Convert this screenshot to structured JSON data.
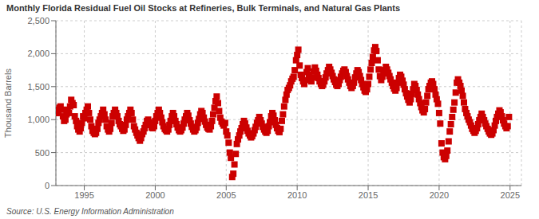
{
  "chart_data": {
    "type": "scatter",
    "title": "Monthly Florida Residual Fuel Oil Stocks at Refineries, Bulk Terminals, and Natural Gas Plants",
    "ylabel": "Thousand Barrels",
    "annotations": [
      "Source: U.S. Energy Information Administration"
    ],
    "color": "#cc0000",
    "marker": "square",
    "grid": true,
    "xlim": [
      1993.0,
      2025.8
    ],
    "xticks": [
      1995,
      2000,
      2005,
      2010,
      2015,
      2020,
      2025
    ],
    "ylim": [
      0,
      2500
    ],
    "yticks": [
      0,
      500,
      {
        "value": 1000,
        "label": "1,000"
      },
      {
        "value": 1500,
        "label": "1,500"
      },
      {
        "value": 2000,
        "label": "2,000"
      },
      {
        "value": 2500,
        "label": "2,500"
      }
    ],
    "x": [
      1993.0,
      1993.08,
      1993.17,
      1993.25,
      1993.33,
      1993.42,
      1993.5,
      1993.58,
      1993.67,
      1993.75,
      1993.83,
      1993.92,
      1994.0,
      1994.08,
      1994.17,
      1994.25,
      1994.33,
      1994.42,
      1994.5,
      1994.58,
      1994.67,
      1994.75,
      1994.83,
      1994.92,
      1995.0,
      1995.08,
      1995.17,
      1995.25,
      1995.33,
      1995.42,
      1995.5,
      1995.58,
      1995.67,
      1995.75,
      1995.83,
      1995.92,
      1996.0,
      1996.08,
      1996.17,
      1996.25,
      1996.33,
      1996.42,
      1996.5,
      1996.58,
      1996.67,
      1996.75,
      1996.83,
      1996.92,
      1997.0,
      1997.08,
      1997.17,
      1997.25,
      1997.33,
      1997.42,
      1997.5,
      1997.58,
      1997.67,
      1997.75,
      1997.83,
      1997.92,
      1998.0,
      1998.08,
      1998.17,
      1998.25,
      1998.33,
      1998.42,
      1998.5,
      1998.58,
      1998.67,
      1998.75,
      1998.83,
      1998.92,
      1999.0,
      1999.08,
      1999.17,
      1999.25,
      1999.33,
      1999.42,
      1999.5,
      1999.58,
      1999.67,
      1999.75,
      1999.83,
      1999.92,
      2000.0,
      2000.08,
      2000.17,
      2000.25,
      2000.33,
      2000.42,
      2000.5,
      2000.58,
      2000.67,
      2000.75,
      2000.83,
      2000.92,
      2001.0,
      2001.08,
      2001.17,
      2001.25,
      2001.33,
      2001.42,
      2001.5,
      2001.58,
      2001.67,
      2001.75,
      2001.83,
      2001.92,
      2002.0,
      2002.08,
      2002.17,
      2002.25,
      2002.33,
      2002.42,
      2002.5,
      2002.58,
      2002.67,
      2002.75,
      2002.83,
      2002.92,
      2003.0,
      2003.08,
      2003.17,
      2003.25,
      2003.33,
      2003.42,
      2003.5,
      2003.58,
      2003.67,
      2003.75,
      2003.83,
      2003.92,
      2004.0,
      2004.08,
      2004.17,
      2004.25,
      2004.33,
      2004.42,
      2004.5,
      2004.58,
      2004.67,
      2004.75,
      2004.83,
      2004.92,
      2005.0,
      2005.08,
      2005.17,
      2005.25,
      2005.33,
      2005.42,
      2005.5,
      2005.58,
      2005.67,
      2005.75,
      2005.83,
      2005.92,
      2006.0,
      2006.08,
      2006.17,
      2006.25,
      2006.33,
      2006.42,
      2006.5,
      2006.58,
      2006.67,
      2006.75,
      2006.83,
      2006.92,
      2007.0,
      2007.08,
      2007.17,
      2007.25,
      2007.33,
      2007.42,
      2007.5,
      2007.58,
      2007.67,
      2007.75,
      2007.83,
      2007.92,
      2008.0,
      2008.08,
      2008.17,
      2008.25,
      2008.33,
      2008.42,
      2008.5,
      2008.58,
      2008.67,
      2008.75,
      2008.83,
      2008.92,
      2009.0,
      2009.08,
      2009.17,
      2009.25,
      2009.33,
      2009.42,
      2009.5,
      2009.58,
      2009.67,
      2009.75,
      2009.83,
      2009.92,
      2010.0,
      2010.08,
      2010.17,
      2010.25,
      2010.33,
      2010.42,
      2010.5,
      2010.58,
      2010.67,
      2010.75,
      2010.83,
      2010.92,
      2011.0,
      2011.08,
      2011.17,
      2011.25,
      2011.33,
      2011.42,
      2011.5,
      2011.58,
      2011.67,
      2011.75,
      2011.83,
      2011.92,
      2012.0,
      2012.08,
      2012.17,
      2012.25,
      2012.33,
      2012.42,
      2012.5,
      2012.58,
      2012.67,
      2012.75,
      2012.83,
      2012.92,
      2013.0,
      2013.08,
      2013.17,
      2013.25,
      2013.33,
      2013.42,
      2013.5,
      2013.58,
      2013.67,
      2013.75,
      2013.83,
      2013.92,
      2014.0,
      2014.08,
      2014.17,
      2014.25,
      2014.33,
      2014.42,
      2014.5,
      2014.58,
      2014.67,
      2014.75,
      2014.83,
      2014.92,
      2015.0,
      2015.08,
      2015.17,
      2015.25,
      2015.33,
      2015.42,
      2015.5,
      2015.58,
      2015.67,
      2015.75,
      2015.83,
      2015.92,
      2016.0,
      2016.08,
      2016.17,
      2016.25,
      2016.33,
      2016.42,
      2016.5,
      2016.58,
      2016.67,
      2016.75,
      2016.83,
      2016.92,
      2017.0,
      2017.08,
      2017.17,
      2017.25,
      2017.33,
      2017.42,
      2017.5,
      2017.58,
      2017.67,
      2017.75,
      2017.83,
      2017.92,
      2018.0,
      2018.08,
      2018.17,
      2018.25,
      2018.33,
      2018.42,
      2018.5,
      2018.58,
      2018.67,
      2018.75,
      2018.83,
      2018.92,
      2019.0,
      2019.08,
      2019.17,
      2019.25,
      2019.33,
      2019.42,
      2019.5,
      2019.58,
      2019.67,
      2019.75,
      2019.83,
      2019.92,
      2020.0,
      2020.08,
      2020.17,
      2020.25,
      2020.33,
      2020.42,
      2020.5,
      2020.58,
      2020.67,
      2020.75,
      2020.83,
      2020.92,
      2021.0,
      2021.08,
      2021.17,
      2021.25,
      2021.33,
      2021.42,
      2021.5,
      2021.58,
      2021.67,
      2021.75,
      2021.83,
      2021.92,
      2022.0,
      2022.08,
      2022.17,
      2022.25,
      2022.33,
      2022.42,
      2022.5,
      2022.58,
      2022.67,
      2022.75,
      2022.83,
      2022.92,
      2023.0,
      2023.08,
      2023.17,
      2023.25,
      2023.33,
      2023.42,
      2023.5,
      2023.58,
      2023.67,
      2023.75,
      2023.83,
      2023.92,
      2024.0,
      2024.08,
      2024.17,
      2024.25,
      2024.33,
      2024.42,
      2024.5,
      2024.58,
      2024.67,
      2024.75,
      2024.83,
      2024.92
    ],
    "values": [
      1100,
      1150,
      1100,
      1180,
      1200,
      1150,
      1050,
      980,
      1000,
      1080,
      1150,
      1100,
      1200,
      1300,
      1250,
      1220,
      1050,
      980,
      900,
      850,
      820,
      870,
      950,
      1050,
      1020,
      1100,
      1150,
      1200,
      1100,
      1000,
      900,
      830,
      800,
      780,
      800,
      860,
      950,
      1000,
      1050,
      1100,
      1150,
      1080,
      1000,
      900,
      850,
      820,
      860,
      950,
      1050,
      1100,
      1150,
      1100,
      1050,
      980,
      930,
      900,
      860,
      830,
      850,
      920,
      1000,
      1050,
      1100,
      1150,
      1100,
      1000,
      900,
      850,
      800,
      760,
      720,
      680,
      720,
      780,
      820,
      870,
      920,
      980,
      1000,
      960,
      920,
      880,
      870,
      900,
      980,
      1050,
      1100,
      1150,
      1100,
      1030,
      960,
      900,
      860,
      840,
      820,
      850,
      920,
      980,
      1050,
      1100,
      1050,
      980,
      930,
      880,
      840,
      820,
      840,
      880,
      940,
      1000,
      1050,
      1100,
      1060,
      990,
      940,
      890,
      850,
      820,
      840,
      880,
      950,
      1010,
      1080,
      1130,
      1100,
      1030,
      970,
      920,
      880,
      860,
      850,
      900,
      980,
      1080,
      1180,
      1280,
      1350,
      1250,
      1130,
      1030,
      970,
      940,
      910,
      950,
      820,
      760,
      650,
      500,
      420,
      130,
      180,
      320,
      480,
      630,
      700,
      760,
      820,
      870,
      930,
      980,
      940,
      880,
      830,
      790,
      760,
      730,
      750,
      790,
      840,
      890,
      950,
      990,
      1040,
      990,
      940,
      890,
      850,
      820,
      800,
      830,
      900,
      960,
      1050,
      1100,
      1060,
      990,
      920,
      870,
      830,
      810,
      860,
      980,
      1080,
      1200,
      1300,
      1380,
      1450,
      1480,
      1520,
      1580,
      1620,
      1650,
      1750,
      1900,
      1980,
      2060,
      1820,
      1680,
      1630,
      1580,
      1540,
      1600,
      1720,
      1780,
      1680,
      1630,
      1580,
      1640,
      1730,
      1790,
      1740,
      1680,
      1630,
      1580,
      1540,
      1510,
      1530,
      1580,
      1640,
      1700,
      1750,
      1800,
      1760,
      1710,
      1660,
      1610,
      1570,
      1530,
      1510,
      1540,
      1600,
      1650,
      1700,
      1740,
      1760,
      1720,
      1660,
      1610,
      1560,
      1510,
      1480,
      1510,
      1560,
      1640,
      1700,
      1750,
      1720,
      1660,
      1600,
      1540,
      1490,
      1440,
      1420,
      1460,
      1540,
      1650,
      1760,
      1860,
      1950,
      2050,
      2100,
      2040,
      1900,
      1760,
      1660,
      1600,
      1650,
      1700,
      1750,
      1800,
      1760,
      1710,
      1660,
      1610,
      1560,
      1510,
      1470,
      1440,
      1480,
      1560,
      1630,
      1680,
      1650,
      1590,
      1530,
      1460,
      1400,
      1350,
      1300,
      1260,
      1310,
      1390,
      1460,
      1540,
      1510,
      1450,
      1380,
      1310,
      1250,
      1190,
      1140,
      1110,
      1160,
      1260,
      1360,
      1460,
      1510,
      1560,
      1580,
      1540,
      1460,
      1380,
      1310,
      1240,
      1100,
      940,
      640,
      500,
      430,
      400,
      450,
      530,
      670,
      820,
      930,
      1040,
      1150,
      1260,
      1410,
      1560,
      1610,
      1560,
      1510,
      1440,
      1360,
      1260,
      1160,
      1100,
      1050,
      1000,
      960,
      910,
      860,
      830,
      800,
      830,
      870,
      930,
      990,
      1040,
      1090,
      1040,
      990,
      940,
      900,
      860,
      820,
      790,
      770,
      790,
      840,
      910,
      980,
      1040,
      1090,
      1140,
      1110,
      1050,
      990,
      940,
      900,
      870,
      900,
      1040
    ]
  }
}
